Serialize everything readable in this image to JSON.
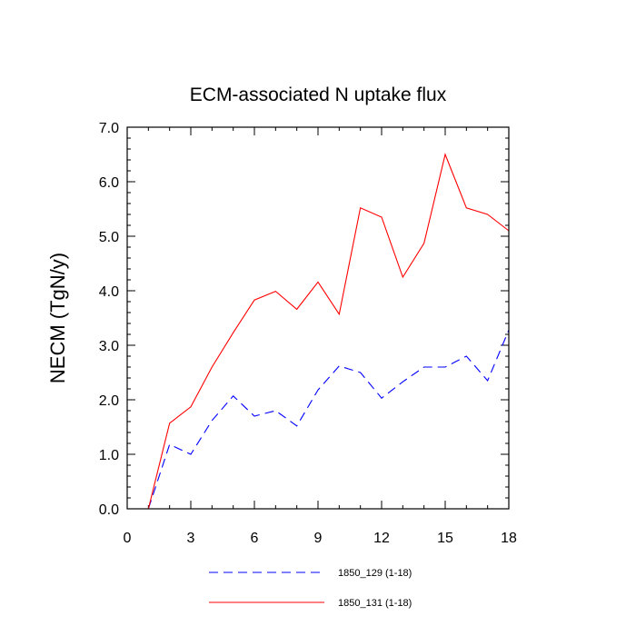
{
  "chart_data": {
    "type": "line",
    "title": "ECM-associated N uptake flux",
    "xlabel": "",
    "ylabel": "NECM  (TgN/y)",
    "xlim": [
      0,
      18
    ],
    "ylim": [
      0,
      7
    ],
    "xticks": [
      0,
      3,
      6,
      9,
      12,
      15,
      18
    ],
    "xtick_labels": [
      "0",
      "3",
      "6",
      "9",
      "12",
      "15",
      "18"
    ],
    "yticks": [
      0,
      1,
      2,
      3,
      4,
      5,
      6,
      7
    ],
    "ytick_labels": [
      "0.0",
      "1.0",
      "2.0",
      "3.0",
      "4.0",
      "5.0",
      "6.0",
      "7.0"
    ],
    "grid": false,
    "legend_position": "bottom",
    "x": [
      1,
      2,
      3,
      4,
      5,
      6,
      7,
      8,
      9,
      10,
      11,
      12,
      13,
      14,
      15,
      16,
      17,
      18
    ],
    "series": [
      {
        "name": "1850_129 (1-18)",
        "color": "#0000ff",
        "style": "dashed",
        "values": [
          0.0,
          1.18,
          1.0,
          1.62,
          2.07,
          1.7,
          1.8,
          1.52,
          2.18,
          2.62,
          2.5,
          2.03,
          2.33,
          2.6,
          2.6,
          2.8,
          2.35,
          3.28
        ]
      },
      {
        "name": "1850_131 (1-18)",
        "color": "#ff0000",
        "style": "solid",
        "values": [
          0.0,
          1.57,
          1.87,
          2.6,
          3.23,
          3.83,
          3.99,
          3.66,
          4.16,
          3.57,
          5.52,
          5.35,
          4.25,
          4.87,
          6.5,
          5.52,
          5.4,
          5.1
        ]
      }
    ]
  }
}
